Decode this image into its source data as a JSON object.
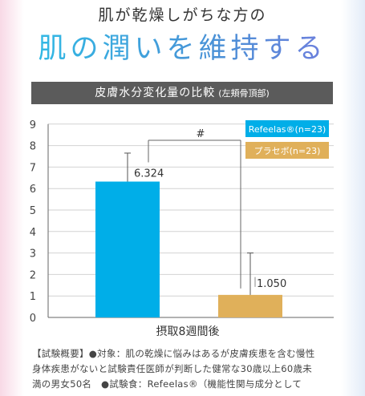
{
  "header": {
    "kicker": "肌が乾燥しがちな方の",
    "headline": "肌の潤いを維持する"
  },
  "banner": {
    "title": "皮膚水分変化量の比較",
    "sub": "(左頬骨頂部)"
  },
  "colors": {
    "refeelas": "#00aee8",
    "placebo": "#e0b05a",
    "grid": "#d2d2d2",
    "axis": "#666666"
  },
  "chart_data": {
    "type": "bar",
    "categories": [
      "Refeelas®(n=23)",
      "プラセボ(n=23)"
    ],
    "values": [
      6.324,
      1.05
    ],
    "error_upper": [
      7.65,
      3.0
    ],
    "value_labels": [
      "6.324",
      "1.050"
    ],
    "series": [
      {
        "name": "Refeelas®(n=23)",
        "color": "#00aee8",
        "value": 6.324
      },
      {
        "name": "プラセボ(n=23)",
        "color": "#e0b05a",
        "value": 1.05
      }
    ],
    "yticks": [
      0,
      1,
      2,
      3,
      4,
      5,
      6,
      7,
      8,
      9
    ],
    "ylim": [
      0,
      9
    ],
    "xlabel": "摂取8週間後",
    "ylabel": "",
    "significance_label": "#",
    "grid": true,
    "legend_position": "top-right"
  },
  "footnote": {
    "line1": "【試験概要】●対象：肌の乾燥に悩みはあるが皮膚疾患を含む慢性",
    "line2": "身体疾患がないと試験責任医師が判断した健常な30歳以上60歳未",
    "line3": "満の男女50名　●試験食：Refeelas®（機能性関与成分として"
  }
}
